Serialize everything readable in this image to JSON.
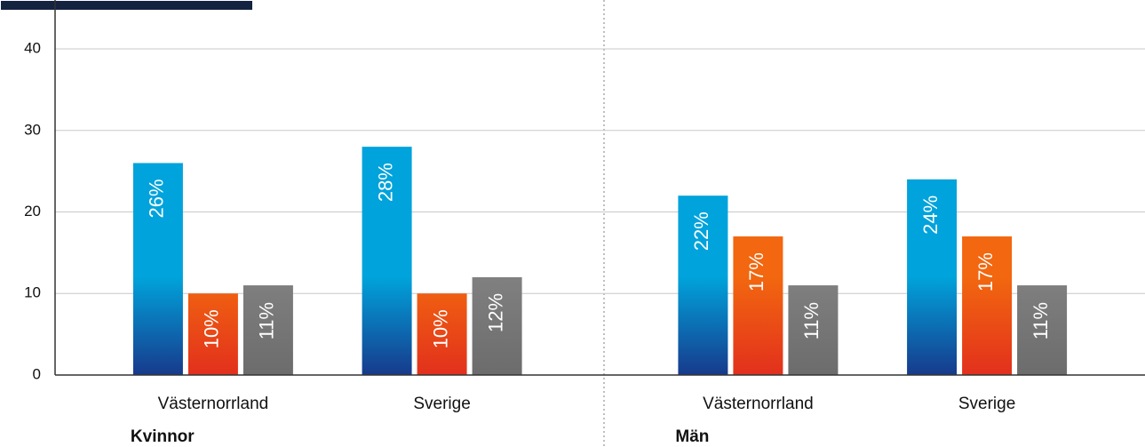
{
  "chart_data": {
    "type": "bar",
    "categories": [
      "Västernorrland",
      "Sverige",
      "Västernorrland",
      "Sverige"
    ],
    "group_labels": [
      "Kvinnor",
      "Män"
    ],
    "series": [
      {
        "color": "#00a3db",
        "color_bottom": "#173a8c",
        "values": [
          26,
          28,
          22,
          24
        ],
        "value_labels": [
          "26%",
          "28%",
          "22%",
          "24%"
        ]
      },
      {
        "color": "#f2670f",
        "color_bottom": "#e2301d",
        "values": [
          10,
          10,
          17,
          17
        ],
        "value_labels": [
          "10%",
          "10%",
          "17%",
          "17%"
        ]
      },
      {
        "color": "#808080",
        "color_bottom": "#6c6c6c",
        "values": [
          11,
          12,
          11,
          11
        ],
        "value_labels": [
          "11%",
          "12%",
          "11%",
          "11%"
        ]
      }
    ],
    "ylim": [
      0,
      46
    ],
    "yticks": [
      0,
      10,
      20,
      30,
      40
    ],
    "grid": true
  }
}
